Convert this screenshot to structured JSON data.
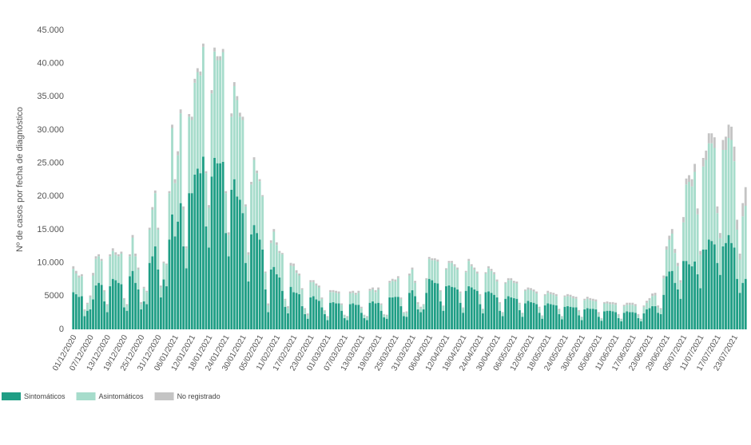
{
  "chart_data": {
    "type": "stacked_bar",
    "y_label": "Nº de casos por fecha de diagnóstico",
    "ylim": [
      0,
      45000
    ],
    "yticks": [
      0,
      5000,
      {
        "value": 10000,
        "label": "10.000"
      },
      {
        "value": 15000,
        "label": "15.000"
      },
      {
        "value": 20000,
        "label": "20.000"
      },
      {
        "value": 25000,
        "label": "25.000"
      },
      {
        "value": 30000,
        "label": "30.000"
      },
      {
        "value": 35000,
        "label": "35.000"
      },
      {
        "value": 40000,
        "label": "40.000"
      },
      {
        "value": 45000,
        "label": "45.000"
      }
    ],
    "grid": false,
    "legend": "bottom-left",
    "categories": [
      "01/12/2020",
      null,
      null,
      null,
      null,
      null,
      "07/12/2020",
      null,
      null,
      null,
      null,
      null,
      "13/12/2020",
      null,
      null,
      null,
      null,
      null,
      "19/12/2020",
      null,
      null,
      null,
      null,
      null,
      "25/12/2020",
      null,
      null,
      null,
      null,
      null,
      "31/12/2020",
      null,
      null,
      null,
      null,
      null,
      "06/01/2021",
      null,
      null,
      null,
      null,
      null,
      "12/01/2021",
      null,
      null,
      null,
      null,
      null,
      "18/01/2021",
      null,
      null,
      null,
      null,
      null,
      "24/01/2021",
      null,
      null,
      null,
      null,
      null,
      "30/01/2021",
      null,
      null,
      null,
      null,
      null,
      "05/02/2021",
      null,
      null,
      null,
      null,
      null,
      "11/02/2021",
      null,
      null,
      null,
      null,
      null,
      "17/02/2021",
      null,
      null,
      null,
      null,
      null,
      "23/02/2021",
      null,
      null,
      null,
      null,
      null,
      "01/03/2021",
      null,
      null,
      null,
      null,
      null,
      "07/03/2021",
      null,
      null,
      null,
      null,
      null,
      "13/03/2021",
      null,
      null,
      null,
      null,
      null,
      "19/03/2021",
      null,
      null,
      null,
      null,
      null,
      "25/03/2021",
      null,
      null,
      null,
      null,
      null,
      "31/03/2021",
      null,
      null,
      null,
      null,
      null,
      "06/04/2021",
      null,
      null,
      null,
      null,
      null,
      "12/04/2021",
      null,
      null,
      null,
      null,
      null,
      "18/04/2021",
      null,
      null,
      null,
      null,
      null,
      "24/04/2021",
      null,
      null,
      null,
      null,
      null,
      "30/04/2021",
      null,
      null,
      null,
      null,
      null,
      "06/05/2021",
      null,
      null,
      null,
      null,
      null,
      "12/05/2021",
      null,
      null,
      null,
      null,
      null,
      "18/05/2021",
      null,
      null,
      null,
      null,
      null,
      "24/05/2021",
      null,
      null,
      null,
      null,
      null,
      "30/05/2021",
      null,
      null,
      null,
      null,
      null,
      "05/06/2021",
      null,
      null,
      null,
      null,
      null,
      "11/06/2021",
      null,
      null,
      null,
      null,
      null,
      "17/06/2021",
      null,
      null,
      null,
      null,
      null,
      "23/06/2021",
      null,
      null,
      null,
      null,
      null,
      "29/06/2021",
      null,
      null,
      null,
      null,
      null,
      "05/07/2021",
      null,
      null,
      null,
      null,
      null,
      "11/07/2021",
      null,
      null,
      null,
      null,
      null,
      "17/07/2021",
      null,
      null,
      null,
      null,
      null,
      "23/07/2021",
      null,
      null,
      null,
      null
    ],
    "series": [
      {
        "name": "Sintomáticos",
        "color": "#1f9e85",
        "values": [
          5600,
          5300,
          4900,
          5000,
          2000,
          2800,
          3000,
          4500,
          6600,
          7000,
          6700,
          4200,
          2600,
          6500,
          7600,
          7400,
          7000,
          6800,
          3300,
          2800,
          8000,
          8800,
          7000,
          6000,
          3000,
          4200,
          3800,
          10000,
          11000,
          12500,
          9000,
          4800,
          7500,
          6500,
          13500,
          17300,
          14000,
          16200,
          19000,
          12500,
          9200,
          20500,
          20500,
          23300,
          24200,
          23500,
          26000,
          15500,
          12300,
          23000,
          25800,
          25000,
          25000,
          25200,
          14500,
          11000,
          21000,
          22600,
          20000,
          19500,
          17500,
          10000,
          7200,
          14300,
          15700,
          14500,
          13500,
          12000,
          6000,
          2600,
          9000,
          9400,
          8300,
          7800,
          5800,
          3400,
          2400,
          6400,
          5600,
          5500,
          5300,
          3500,
          2300,
          1600,
          4800,
          5000,
          4500,
          4300,
          3300,
          2300,
          1400,
          4000,
          4100,
          3900,
          3900,
          2800,
          1700,
          1400,
          3800,
          3900,
          3700,
          3700,
          2500,
          1700,
          1400,
          4000,
          4200,
          3900,
          4000,
          2800,
          1800,
          1600,
          4800,
          4800,
          4900,
          4900,
          3500,
          2000,
          1900,
          5500,
          5900,
          5000,
          3000,
          2600,
          3000,
          5500,
          7600,
          7400,
          7000,
          6900,
          4200,
          2800,
          6500,
          6600,
          6400,
          6300,
          6000,
          4000,
          2500,
          5800,
          6500,
          6300,
          6000,
          5800,
          3800,
          2400,
          5600,
          5700,
          5500,
          5200,
          4800,
          2800,
          2000,
          4600,
          5000,
          4800,
          4700,
          4600,
          2900,
          1900,
          3900,
          4300,
          4100,
          4000,
          3800,
          2500,
          1600,
          3600,
          3900,
          3800,
          3700,
          3600,
          2300,
          1500,
          3400,
          3500,
          3400,
          3300,
          3300,
          2100,
          1400,
          3000,
          3200,
          3100,
          3100,
          3000,
          1900,
          1300,
          2700,
          2800,
          2800,
          2700,
          2600,
          1700,
          1200,
          2500,
          2700,
          2600,
          2600,
          2500,
          1700,
          1200,
          2400,
          3000,
          3200,
          3500,
          3500,
          2500,
          2300,
          5200,
          8000,
          8700,
          8800,
          7000,
          6000,
          4600,
          10300,
          10300,
          9800,
          9500,
          10200,
          8300,
          6200,
          12000,
          12000,
          13500,
          13300,
          12800,
          10000,
          8200,
          12500,
          13000,
          14200,
          13000,
          12300,
          7600,
          5500,
          7000,
          7600
        ]
      },
      {
        "name": "Asintomáticos",
        "color": "#a6dccb",
        "values": [
          3500,
          3100,
          2900,
          3000,
          800,
          1000,
          1800,
          3600,
          4000,
          4000,
          3600,
          1500,
          1000,
          4500,
          4200,
          3800,
          4000,
          4600,
          1200,
          800,
          3000,
          5000,
          4000,
          3000,
          800,
          2000,
          1800,
          5000,
          7000,
          8000,
          6000,
          1500,
          2500,
          3200,
          7000,
          13000,
          8000,
          10000,
          13500,
          5500,
          3000,
          11500,
          11000,
          13800,
          14500,
          14700,
          16500,
          8000,
          6000,
          12500,
          16000,
          15500,
          15500,
          16500,
          6000,
          3200,
          11000,
          14000,
          14500,
          12500,
          14000,
          8500,
          4000,
          7500,
          9800,
          9000,
          8800,
          8000,
          2500,
          1000,
          4000,
          5300,
          4400,
          3700,
          5500,
          1000,
          800,
          3200,
          3900,
          3000,
          2800,
          2500,
          700,
          500,
          2300,
          2100,
          2100,
          2000,
          1300,
          500,
          400,
          1600,
          1500,
          1600,
          1500,
          900,
          400,
          400,
          1600,
          1600,
          1500,
          1800,
          700,
          400,
          400,
          1800,
          1800,
          1700,
          2000,
          900,
          400,
          400,
          2200,
          2500,
          2300,
          2800,
          1100,
          500,
          600,
          2600,
          3100,
          2000,
          800,
          600,
          700,
          2000,
          3000,
          3000,
          3400,
          3300,
          1500,
          700,
          2500,
          3400,
          3600,
          3200,
          3000,
          1500,
          700,
          2800,
          3800,
          3200,
          3000,
          2600,
          1300,
          600,
          2800,
          3500,
          3300,
          3100,
          2400,
          1100,
          500,
          2300,
          2400,
          2600,
          2300,
          2300,
          900,
          500,
          1900,
          1700,
          1800,
          1700,
          1600,
          700,
          400,
          1500,
          1600,
          1500,
          1500,
          1400,
          600,
          400,
          1500,
          1500,
          1500,
          1400,
          1300,
          600,
          400,
          1400,
          1400,
          1300,
          1200,
          1200,
          500,
          300,
          1200,
          1100,
          1000,
          1100,
          1100,
          400,
          300,
          1000,
          1000,
          1100,
          1100,
          1000,
          400,
          300,
          1000,
          1000,
          1200,
          1500,
          1600,
          800,
          700,
          2500,
          4000,
          4800,
          5600,
          4500,
          3500,
          2400,
          5800,
          11500,
          12400,
          12000,
          13500,
          9000,
          5000,
          12500,
          13500,
          14500,
          14700,
          14500,
          7500,
          5500,
          14500,
          14000,
          14600,
          15500,
          13000,
          7400,
          5000,
          10000,
          11000
        ]
      },
      {
        "name": "No registrado",
        "color": "#c4c4c4",
        "values": [
          400,
          400,
          300,
          300,
          200,
          200,
          300,
          400,
          400,
          300,
          300,
          200,
          200,
          300,
          400,
          400,
          300,
          300,
          200,
          200,
          300,
          400,
          400,
          300,
          300,
          200,
          200,
          300,
          400,
          400,
          300,
          300,
          200,
          200,
          300,
          500,
          600,
          600,
          600,
          500,
          300,
          400,
          500,
          600,
          600,
          600,
          500,
          300,
          400,
          500,
          600,
          600,
          600,
          500,
          300,
          400,
          500,
          600,
          600,
          600,
          500,
          300,
          400,
          400,
          400,
          400,
          300,
          200,
          200,
          300,
          400,
          400,
          400,
          300,
          200,
          200,
          300,
          400,
          400,
          400,
          300,
          200,
          200,
          300,
          300,
          300,
          300,
          300,
          200,
          100,
          200,
          300,
          300,
          300,
          300,
          200,
          100,
          200,
          300,
          300,
          300,
          300,
          200,
          100,
          200,
          300,
          300,
          300,
          300,
          200,
          100,
          200,
          300,
          300,
          300,
          300,
          200,
          100,
          200,
          300,
          300,
          300,
          300,
          200,
          100,
          200,
          300,
          300,
          300,
          300,
          200,
          100,
          200,
          300,
          300,
          300,
          300,
          200,
          100,
          200,
          300,
          300,
          300,
          300,
          200,
          100,
          200,
          300,
          300,
          300,
          300,
          200,
          100,
          200,
          300,
          300,
          300,
          300,
          200,
          100,
          200,
          300,
          300,
          300,
          300,
          200,
          100,
          200,
          300,
          300,
          300,
          300,
          200,
          100,
          200,
          300,
          300,
          300,
          300,
          200,
          100,
          200,
          300,
          300,
          300,
          300,
          200,
          100,
          200,
          300,
          300,
          300,
          300,
          200,
          100,
          200,
          300,
          300,
          300,
          300,
          200,
          100,
          200,
          300,
          300,
          400,
          400,
          300,
          200,
          400,
          500,
          600,
          700,
          600,
          500,
          400,
          800,
          900,
          1000,
          1100,
          1200,
          900,
          600,
          1300,
          1400,
          1500,
          1500,
          1600,
          1000,
          800,
          1500,
          2000,
          2000,
          2000,
          2200,
          1500,
          900,
          2000,
          2800
        ]
      }
    ]
  }
}
